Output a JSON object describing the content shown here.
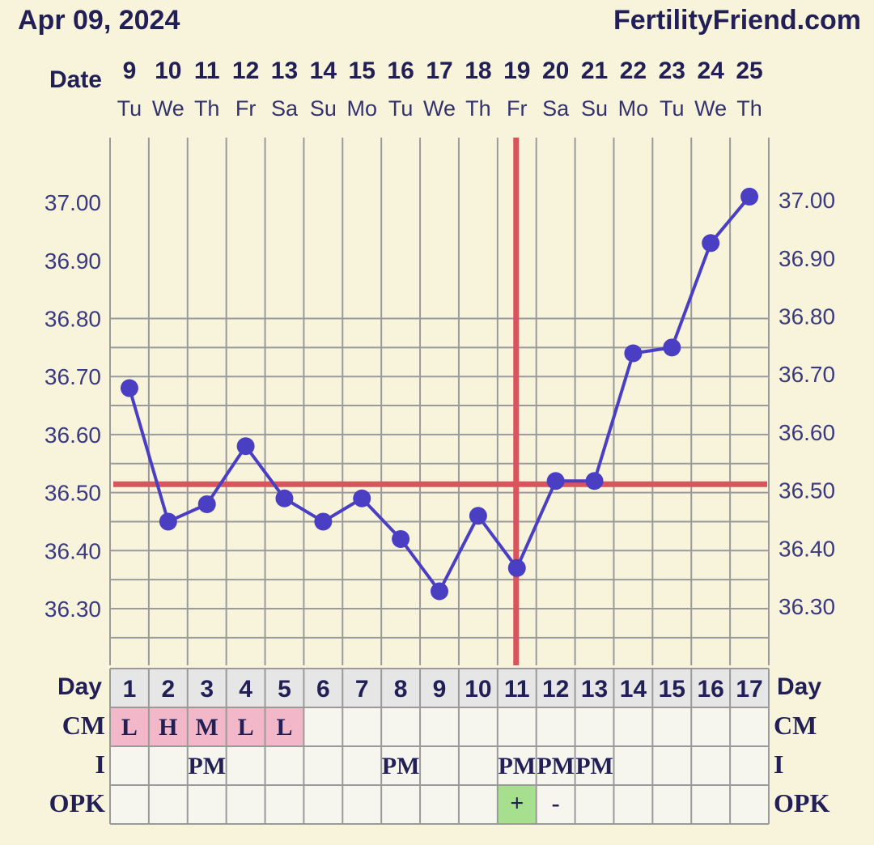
{
  "header": {
    "date": "Apr 09, 2024",
    "site": "FertilityFriend.com"
  },
  "labels": {
    "date_row": "Date",
    "day_left": "Day",
    "day_right": "Day",
    "cm_left": "CM",
    "cm_right": "CM",
    "i_left": "I",
    "i_right": "I",
    "opk_left": "OPK",
    "opk_right": "OPK"
  },
  "colors": {
    "background": "#f8f4dc",
    "line": "#4a3fc2",
    "coverline": "#d9545c",
    "cm_cell": "#f2b7c9",
    "opk_positive": "#a6e08f",
    "day_row": "#e6e6e6",
    "grid": "#9a9a9a"
  },
  "chart_data": {
    "type": "line",
    "title": "",
    "ylim": [
      36.2,
      37.1
    ],
    "y_ticks": [
      "36.30",
      "36.40",
      "36.50",
      "36.60",
      "36.70",
      "36.80",
      "36.90",
      "37.00"
    ],
    "dates": [
      "9",
      "10",
      "11",
      "12",
      "13",
      "14",
      "15",
      "16",
      "17",
      "18",
      "19",
      "20",
      "21",
      "22",
      "23",
      "24",
      "25"
    ],
    "weekdays": [
      "Tu",
      "We",
      "Th",
      "Fr",
      "Sa",
      "Su",
      "Mo",
      "Tu",
      "We",
      "Th",
      "Fr",
      "Sa",
      "Su",
      "Mo",
      "Tu",
      "We",
      "Th"
    ],
    "cycle_days": [
      "1",
      "2",
      "3",
      "4",
      "5",
      "6",
      "7",
      "8",
      "9",
      "10",
      "11",
      "12",
      "13",
      "14",
      "15",
      "16",
      "17"
    ],
    "temperatures": [
      36.68,
      36.45,
      36.48,
      36.58,
      36.49,
      36.45,
      36.49,
      36.42,
      36.33,
      36.46,
      36.37,
      36.52,
      36.52,
      36.74,
      36.75,
      36.93,
      37.01
    ],
    "coverline": 36.52,
    "ovulation_day_index": 10,
    "cm": [
      "L",
      "H",
      "M",
      "L",
      "L",
      "",
      "",
      "",
      "",
      "",
      "",
      "",
      "",
      "",
      "",
      "",
      ""
    ],
    "intercourse": [
      "",
      "",
      "PM",
      "",
      "",
      "",
      "",
      "PM",
      "",
      "",
      "PM",
      "PM",
      "PM",
      "",
      "",
      "",
      ""
    ],
    "opk": [
      "",
      "",
      "",
      "",
      "",
      "",
      "",
      "",
      "",
      "",
      "+",
      "-",
      "",
      "",
      "",
      "",
      ""
    ]
  }
}
